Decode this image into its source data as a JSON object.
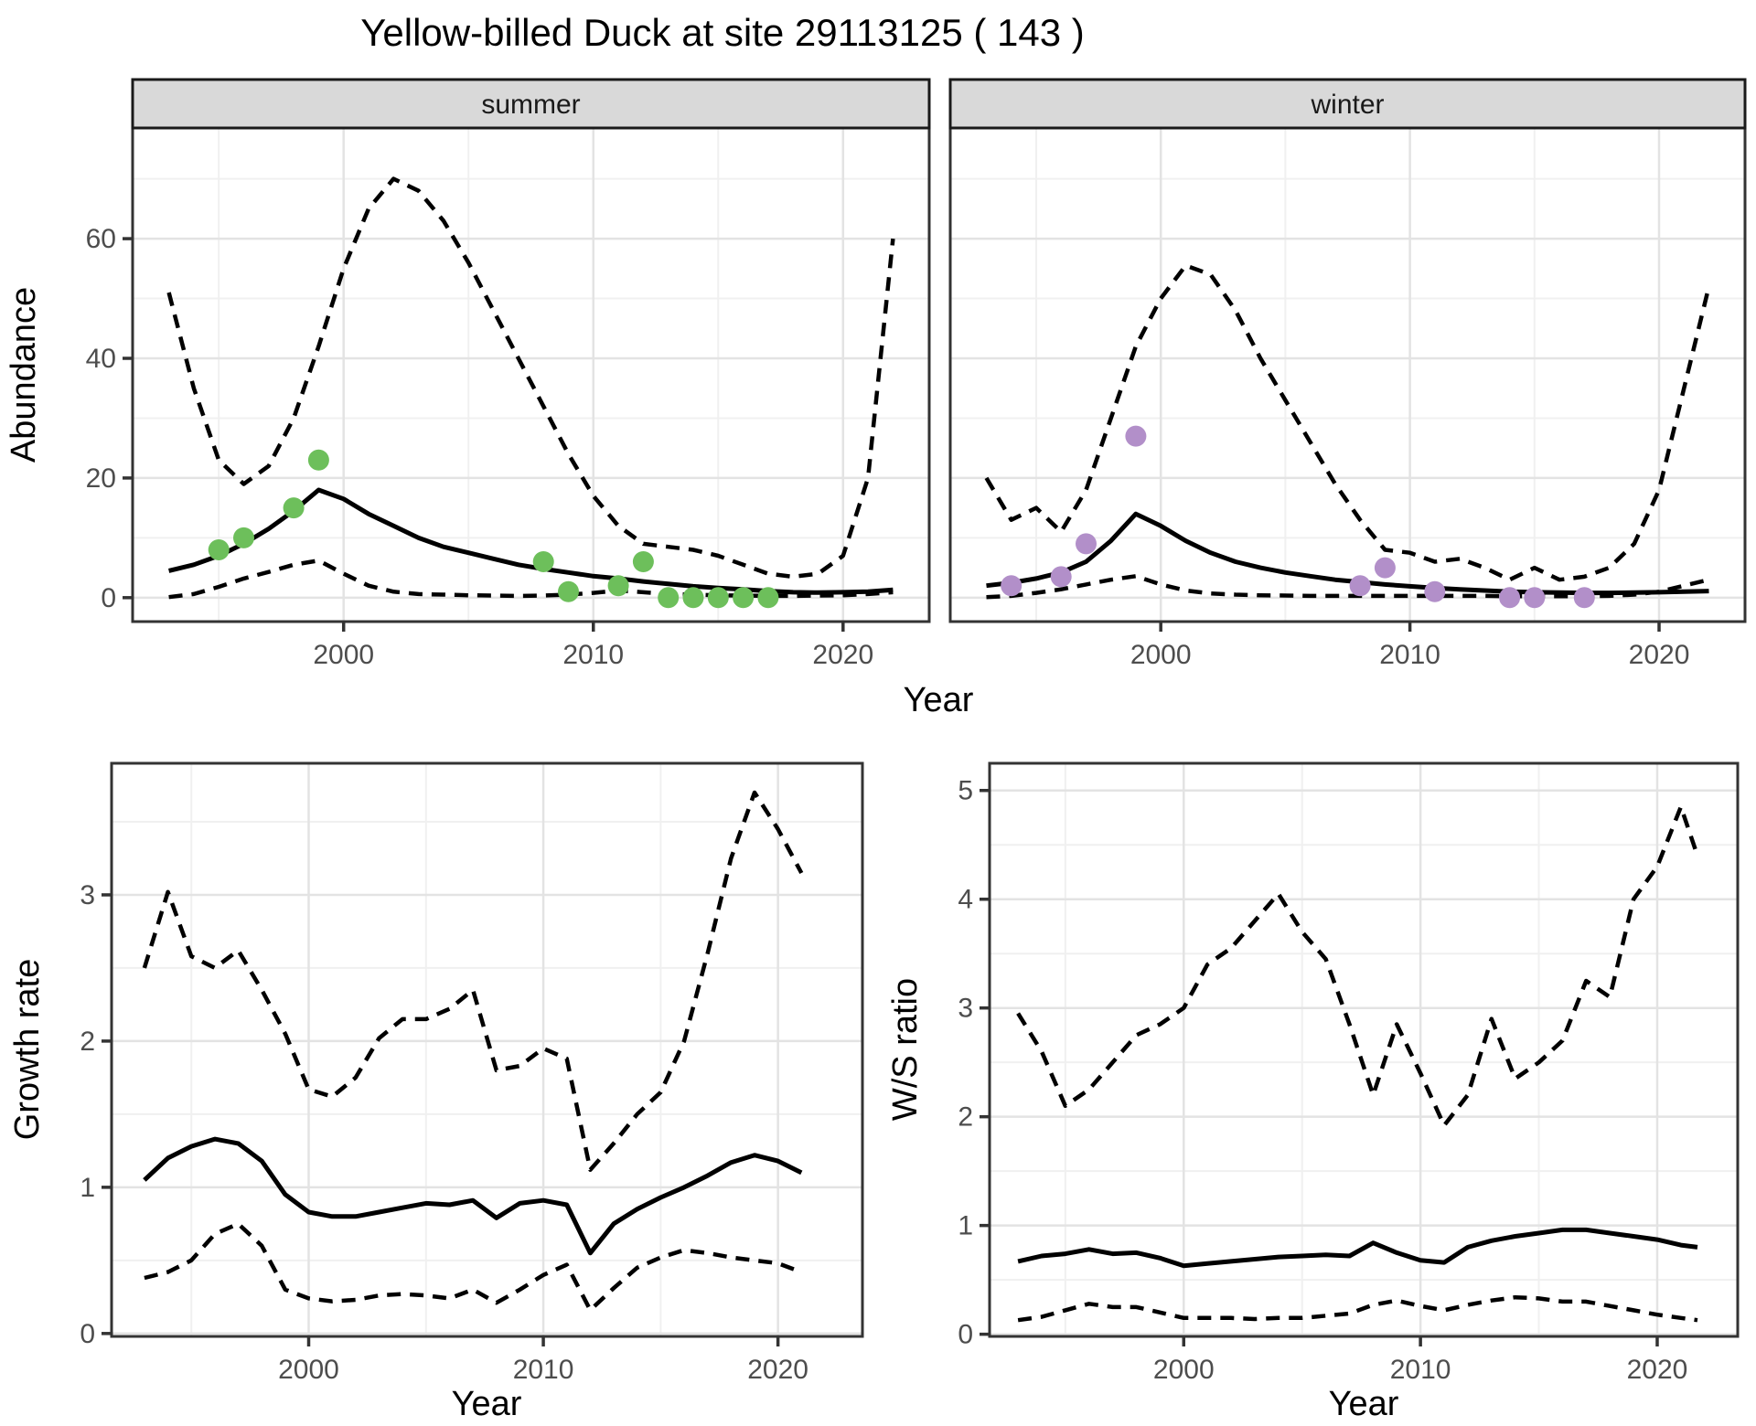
{
  "title": "Yellow-billed Duck at site 29113125 ( 143 )",
  "palette": {
    "summer_point": "#6dbf5b",
    "winter_point": "#b28fc9",
    "line": "#000000",
    "grid_major": "#e3e3e3",
    "grid_minor": "#f0f0f0",
    "strip_bg": "#d9d9d9",
    "strip_border": "#1a1a1a",
    "panel_border": "#333333",
    "axis_text": "#4d4d4d",
    "title_text": "#000000"
  },
  "chart_data": [
    {
      "id": "abundance-summer",
      "type": "line",
      "facet_label": "summer",
      "xlabel": "Year",
      "ylabel": "Abundance",
      "xlim": [
        1991.55,
        2023.45
      ],
      "ylim": [
        -4,
        78.5
      ],
      "x_ticks": [
        2000,
        2010,
        2020
      ],
      "x_minor": [
        1995,
        2005,
        2015
      ],
      "y_ticks": [
        0,
        20,
        40,
        60
      ],
      "y_minor": [
        10,
        30,
        50,
        70
      ],
      "grid": "on",
      "legend": "none",
      "x": [
        1993,
        1994,
        1995,
        1996,
        1997,
        1998,
        1999,
        2000,
        2001,
        2002,
        2003,
        2004,
        2005,
        2006,
        2007,
        2008,
        2009,
        2010,
        2011,
        2012,
        2013,
        2014,
        2015,
        2016,
        2017,
        2018,
        2019,
        2020,
        2021,
        2022
      ],
      "series": [
        {
          "name": "median",
          "style": "solid",
          "values": [
            4.5,
            5.5,
            7,
            9,
            11.5,
            14.5,
            18,
            16.5,
            14,
            12,
            10,
            8.5,
            7.5,
            6.5,
            5.5,
            4.8,
            4.2,
            3.6,
            3.2,
            2.7,
            2.3,
            1.9,
            1.6,
            1.4,
            1.1,
            0.9,
            0.85,
            0.9,
            1,
            1.3
          ]
        },
        {
          "name": "upper-ci",
          "style": "dashed",
          "values": [
            51,
            35,
            23,
            19,
            22,
            30,
            42,
            55,
            65,
            70,
            68,
            63,
            56,
            48,
            40,
            32,
            24,
            17,
            12,
            9,
            8.5,
            8,
            7,
            5.5,
            4,
            3.5,
            4,
            7,
            20,
            60
          ]
        },
        {
          "name": "lower-ci",
          "style": "dashed",
          "values": [
            0.1,
            0.6,
            1.8,
            3.2,
            4.3,
            5.5,
            6.2,
            4,
            2,
            1,
            0.6,
            0.5,
            0.4,
            0.35,
            0.3,
            0.35,
            0.5,
            0.8,
            1.2,
            0.9,
            0.6,
            0.5,
            0.4,
            0.35,
            0.3,
            0.3,
            0.35,
            0.4,
            0.6,
            0.9
          ]
        }
      ],
      "observed_points": {
        "name": "summer-counts",
        "color_key": "summer_point",
        "x": [
          1995,
          1996,
          1998,
          1999,
          2008,
          2009,
          2011,
          2012,
          2013,
          2014,
          2015,
          2016,
          2017
        ],
        "values": [
          8,
          10,
          15,
          23,
          6,
          1,
          2,
          6,
          0,
          0,
          0,
          0,
          0
        ]
      }
    },
    {
      "id": "abundance-winter",
      "type": "line",
      "facet_label": "winter",
      "xlabel": "Year",
      "ylabel": "",
      "xlim": [
        1991.55,
        2023.45
      ],
      "ylim": [
        -4,
        78.5
      ],
      "x_ticks": [
        2000,
        2010,
        2020
      ],
      "x_minor": [
        1995,
        2005,
        2015
      ],
      "y_ticks": [
        0,
        20,
        40,
        60
      ],
      "y_minor": [
        10,
        30,
        50,
        70
      ],
      "grid": "on",
      "legend": "none",
      "x": [
        1993,
        1994,
        1995,
        1996,
        1997,
        1998,
        1999,
        2000,
        2001,
        2002,
        2003,
        2004,
        2005,
        2006,
        2007,
        2008,
        2009,
        2010,
        2011,
        2012,
        2013,
        2014,
        2015,
        2016,
        2017,
        2018,
        2019,
        2020,
        2021,
        2022
      ],
      "series": [
        {
          "name": "median",
          "style": "solid",
          "values": [
            2,
            2.5,
            3.2,
            4.2,
            6,
            9.5,
            14,
            12,
            9.5,
            7.5,
            6,
            5,
            4.2,
            3.6,
            3,
            2.6,
            2.2,
            1.9,
            1.6,
            1.4,
            1.2,
            1,
            0.9,
            0.85,
            0.8,
            0.8,
            0.85,
            0.9,
            1,
            1.1
          ]
        },
        {
          "name": "upper-ci",
          "style": "dashed",
          "values": [
            20,
            13,
            15,
            11,
            18,
            30,
            42,
            50,
            55.5,
            54,
            48,
            40,
            33,
            26,
            19,
            13,
            8,
            7.5,
            6,
            6.5,
            5,
            3,
            5,
            3,
            3.5,
            5,
            9,
            18,
            35,
            52
          ]
        },
        {
          "name": "lower-ci",
          "style": "dashed",
          "values": [
            0.1,
            0.3,
            0.8,
            1.4,
            2.2,
            3,
            3.6,
            2.2,
            1.2,
            0.7,
            0.5,
            0.4,
            0.35,
            0.3,
            0.3,
            0.3,
            0.3,
            0.3,
            0.3,
            0.3,
            0.3,
            0.25,
            0.25,
            0.25,
            0.25,
            0.3,
            0.5,
            1,
            2,
            3
          ]
        }
      ],
      "observed_points": {
        "name": "winter-counts",
        "color_key": "winter_point",
        "x": [
          1994,
          1996,
          1997,
          1999,
          2008,
          2009,
          2011,
          2014,
          2015,
          2017
        ],
        "values": [
          2,
          3.5,
          9,
          27,
          2,
          5,
          1,
          0,
          0,
          0
        ]
      }
    },
    {
      "id": "growth-rate",
      "type": "line",
      "facet_label": "",
      "xlabel": "Year",
      "ylabel": "Growth rate",
      "xlim": [
        1991.6,
        2023.6
      ],
      "ylim": [
        -0.02,
        3.9
      ],
      "x_ticks": [
        2000,
        2010,
        2020
      ],
      "x_minor": [
        1995,
        2005,
        2015
      ],
      "y_ticks": [
        0,
        1,
        2,
        3
      ],
      "y_minor": [
        0.5,
        1.5,
        2.5,
        3.5
      ],
      "grid": "on",
      "legend": "none",
      "x": [
        1993,
        1994,
        1995,
        1996,
        1997,
        1998,
        1999,
        2000,
        2001,
        2002,
        2003,
        2004,
        2005,
        2006,
        2007,
        2008,
        2009,
        2010,
        2011,
        2012,
        2013,
        2014,
        2015,
        2016,
        2017,
        2018,
        2019,
        2020,
        2021
      ],
      "series": [
        {
          "name": "median",
          "style": "solid",
          "values": [
            1.05,
            1.2,
            1.28,
            1.33,
            1.3,
            1.18,
            0.95,
            0.83,
            0.8,
            0.8,
            0.83,
            0.86,
            0.89,
            0.88,
            0.91,
            0.79,
            0.89,
            0.91,
            0.88,
            0.55,
            0.75,
            0.85,
            0.93,
            1.0,
            1.08,
            1.17,
            1.22,
            1.18,
            1.1
          ]
        },
        {
          "name": "upper-ci",
          "style": "dashed",
          "values": [
            2.5,
            3.02,
            2.58,
            2.5,
            2.62,
            2.35,
            2.05,
            1.67,
            1.62,
            1.75,
            2.02,
            2.15,
            2.15,
            2.22,
            2.35,
            1.8,
            1.83,
            1.95,
            1.88,
            1.12,
            1.3,
            1.5,
            1.65,
            2.0,
            2.6,
            3.25,
            3.7,
            3.45,
            3.15
          ]
        },
        {
          "name": "lower-ci",
          "style": "dashed",
          "values": [
            0.38,
            0.42,
            0.5,
            0.68,
            0.75,
            0.6,
            0.3,
            0.24,
            0.22,
            0.23,
            0.26,
            0.27,
            0.26,
            0.24,
            0.3,
            0.21,
            0.3,
            0.4,
            0.47,
            0.16,
            0.31,
            0.45,
            0.52,
            0.57,
            0.55,
            0.52,
            0.5,
            0.48,
            0.42
          ]
        }
      ]
    },
    {
      "id": "ws-ratio",
      "type": "line",
      "facet_label": "",
      "xlabel": "Year",
      "ylabel": "W/S ratio",
      "xlim": [
        1991.8,
        2023.4
      ],
      "ylim": [
        -0.02,
        5.25
      ],
      "x_ticks": [
        2000,
        2010,
        2020
      ],
      "x_minor": [
        1995,
        2005,
        2015
      ],
      "y_ticks": [
        0,
        1,
        2,
        3,
        4,
        5
      ],
      "y_minor": [
        0.5,
        1.5,
        2.5,
        3.5,
        4.5
      ],
      "grid": "on",
      "legend": "none",
      "x": [
        1993,
        1994,
        1995,
        1996,
        1997,
        1998,
        1999,
        2000,
        2001,
        2002,
        2003,
        2004,
        2005,
        2006,
        2007,
        2008,
        2009,
        2010,
        2011,
        2012,
        2013,
        2014,
        2015,
        2016,
        2017,
        2018,
        2019,
        2020,
        2021,
        2021.7
      ],
      "series": [
        {
          "name": "median",
          "style": "solid",
          "values": [
            0.67,
            0.72,
            0.74,
            0.78,
            0.74,
            0.75,
            0.7,
            0.63,
            0.65,
            0.67,
            0.69,
            0.71,
            0.72,
            0.73,
            0.72,
            0.84,
            0.75,
            0.68,
            0.66,
            0.8,
            0.86,
            0.9,
            0.93,
            0.96,
            0.96,
            0.93,
            0.9,
            0.87,
            0.82,
            0.8
          ]
        },
        {
          "name": "upper-ci",
          "style": "dashed",
          "values": [
            2.95,
            2.6,
            2.1,
            2.25,
            2.5,
            2.75,
            2.85,
            3.0,
            3.4,
            3.55,
            3.8,
            4.05,
            3.7,
            3.45,
            2.85,
            2.2,
            2.85,
            2.4,
            1.92,
            2.2,
            2.9,
            2.35,
            2.5,
            2.7,
            3.25,
            3.1,
            4.0,
            4.3,
            4.85,
            4.4
          ]
        },
        {
          "name": "lower-ci",
          "style": "dashed",
          "values": [
            0.13,
            0.16,
            0.22,
            0.28,
            0.25,
            0.25,
            0.2,
            0.15,
            0.15,
            0.15,
            0.14,
            0.15,
            0.15,
            0.17,
            0.19,
            0.27,
            0.31,
            0.26,
            0.22,
            0.27,
            0.31,
            0.34,
            0.33,
            0.3,
            0.3,
            0.26,
            0.22,
            0.18,
            0.15,
            0.13
          ]
        }
      ]
    }
  ]
}
